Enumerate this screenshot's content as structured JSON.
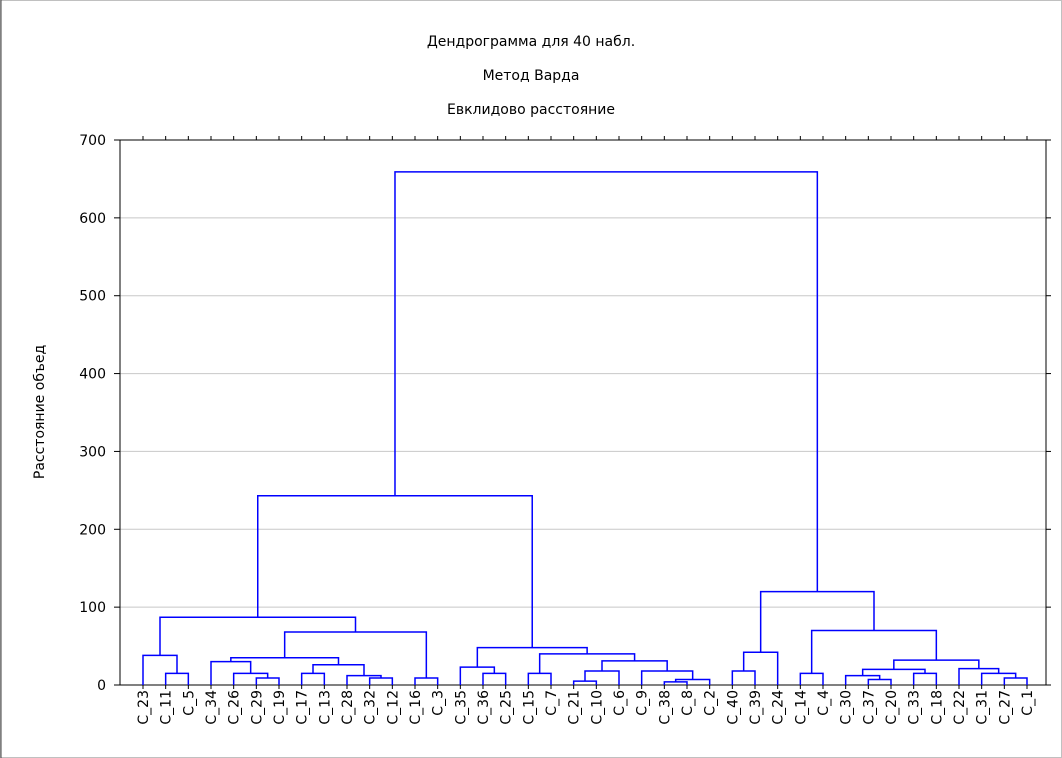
{
  "chart_data": {
    "type": "dendrogram",
    "title": "Дендрограмма для 40 набл.",
    "subtitle": "Метод Варда",
    "subtitle2": "Евклидово расстояние",
    "y_label": "Расстояние объед",
    "categories": [
      "C_23",
      "C_11",
      "C_5",
      "C_34",
      "C_26",
      "C_29",
      "C_19",
      "C_17",
      "C_13",
      "C_28",
      "C_32",
      "C_12",
      "C_16",
      "C_3",
      "C_35",
      "C_36",
      "C_25",
      "C_15",
      "C_7",
      "C_21",
      "C_10",
      "C_6",
      "C_9",
      "C_38",
      "C_8",
      "C_2",
      "C_40",
      "C_39",
      "C_24",
      "C_14",
      "C_4",
      "C_30",
      "C_37",
      "C_20",
      "C_33",
      "C_18",
      "C_22",
      "C_31",
      "C_27",
      "C_1"
    ],
    "merges": [
      {
        "children": [
          1,
          2
        ],
        "height": 15
      },
      {
        "children": [
          0,
          40
        ],
        "height": 38
      },
      {
        "children": [
          5,
          6
        ],
        "height": 9
      },
      {
        "children": [
          4,
          42
        ],
        "height": 15
      },
      {
        "children": [
          3,
          43
        ],
        "height": 30
      },
      {
        "children": [
          7,
          8
        ],
        "height": 15
      },
      {
        "children": [
          10,
          11
        ],
        "height": 9
      },
      {
        "children": [
          9,
          46
        ],
        "height": 12
      },
      {
        "children": [
          45,
          47
        ],
        "height": 26
      },
      {
        "children": [
          44,
          48
        ],
        "height": 35
      },
      {
        "children": [
          12,
          13
        ],
        "height": 9
      },
      {
        "children": [
          49,
          50
        ],
        "height": 68
      },
      {
        "children": [
          41,
          51
        ],
        "height": 87
      },
      {
        "children": [
          15,
          16
        ],
        "height": 15
      },
      {
        "children": [
          14,
          53
        ],
        "height": 23
      },
      {
        "children": [
          17,
          18
        ],
        "height": 15
      },
      {
        "children": [
          19,
          20
        ],
        "height": 5
      },
      {
        "children": [
          56,
          21
        ],
        "height": 18
      },
      {
        "children": [
          23,
          24
        ],
        "height": 4
      },
      {
        "children": [
          58,
          25
        ],
        "height": 7
      },
      {
        "children": [
          22,
          59
        ],
        "height": 18
      },
      {
        "children": [
          57,
          60
        ],
        "height": 31
      },
      {
        "children": [
          55,
          61
        ],
        "height": 40
      },
      {
        "children": [
          54,
          62
        ],
        "height": 48
      },
      {
        "children": [
          52,
          63
        ],
        "height": 243
      },
      {
        "children": [
          26,
          27
        ],
        "height": 18
      },
      {
        "children": [
          65,
          28
        ],
        "height": 42
      },
      {
        "children": [
          29,
          30
        ],
        "height": 15
      },
      {
        "children": [
          32,
          33
        ],
        "height": 7
      },
      {
        "children": [
          31,
          68
        ],
        "height": 12
      },
      {
        "children": [
          34,
          35
        ],
        "height": 15
      },
      {
        "children": [
          69,
          70
        ],
        "height": 20
      },
      {
        "children": [
          38,
          39
        ],
        "height": 9
      },
      {
        "children": [
          37,
          72
        ],
        "height": 15
      },
      {
        "children": [
          36,
          73
        ],
        "height": 21
      },
      {
        "children": [
          71,
          74
        ],
        "height": 32
      },
      {
        "children": [
          67,
          75
        ],
        "height": 70
      },
      {
        "children": [
          66,
          76
        ],
        "height": 120
      },
      {
        "children": [
          64,
          77
        ],
        "height": 659
      }
    ],
    "color": "#0000ff",
    "ylim": [
      0,
      700
    ],
    "yticks": [
      0,
      100,
      200,
      300,
      400,
      500,
      600,
      700
    ],
    "grid": true
  }
}
